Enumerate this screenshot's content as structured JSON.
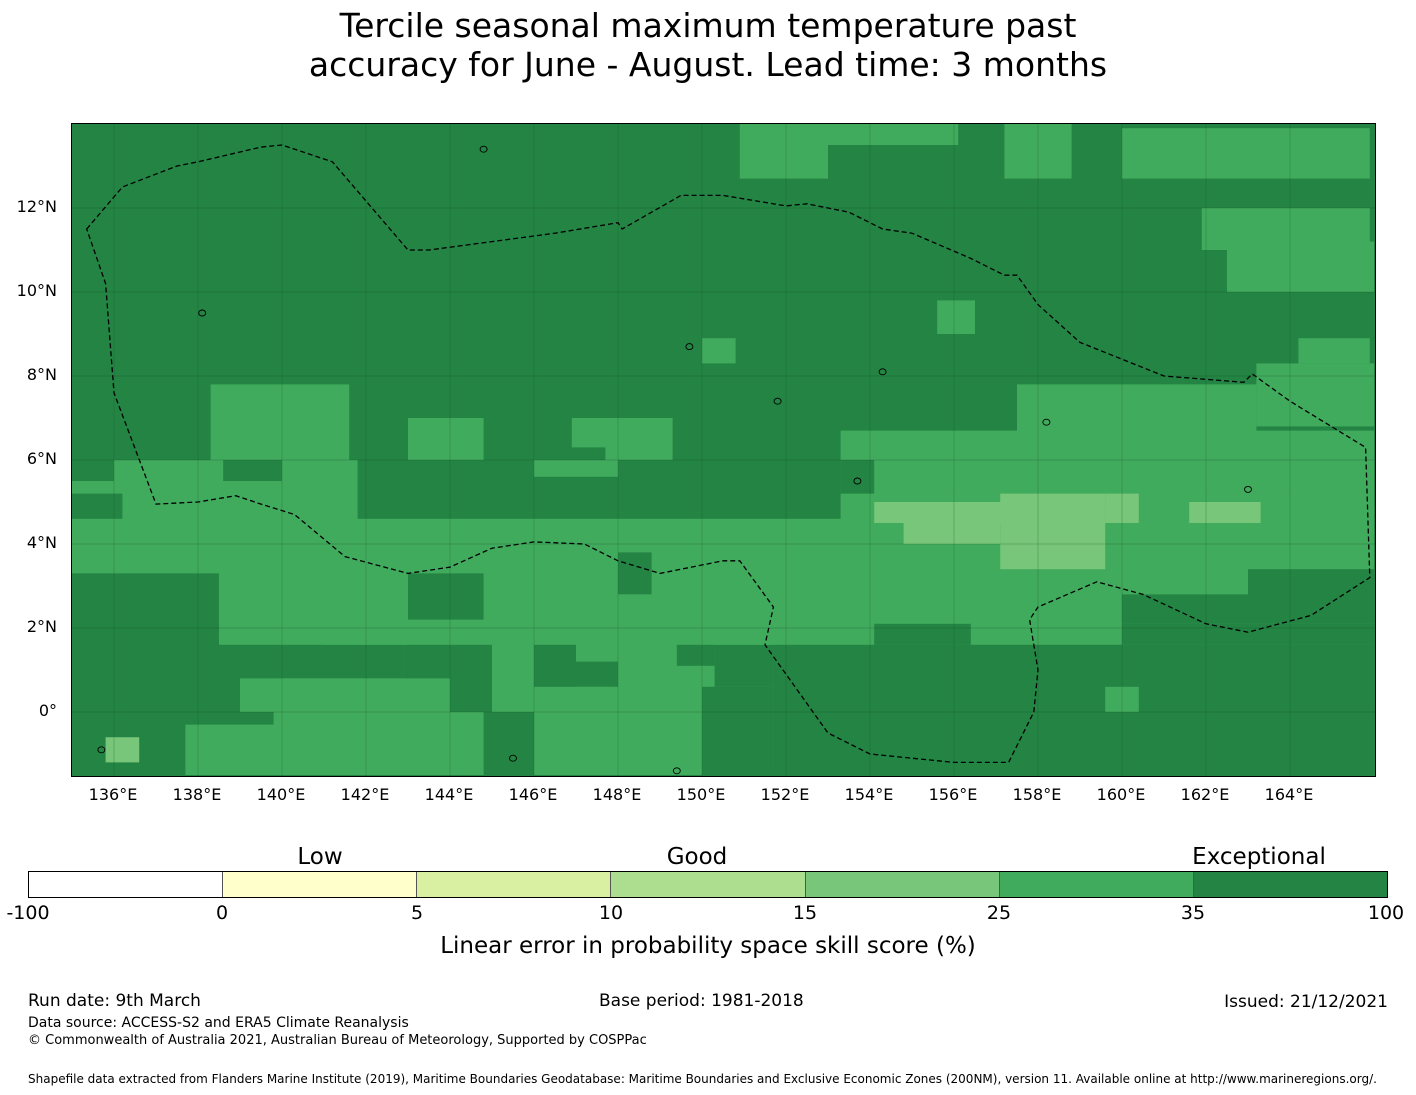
{
  "title": {
    "line1": "Tercile seasonal maximum temperature past",
    "line2": "accuracy for June - August. Lead time: 3 months"
  },
  "map": {
    "lat_labels": [
      "12°N",
      "10°N",
      "8°N",
      "6°N",
      "4°N",
      "2°N",
      "0°"
    ],
    "lon_labels": [
      "136°E",
      "138°E",
      "140°E",
      "142°E",
      "144°E",
      "146°E",
      "148°E",
      "150°E",
      "152°E",
      "154°E",
      "156°E",
      "158°E",
      "160°E",
      "162°E",
      "164°E"
    ],
    "extent": {
      "lon": [
        135,
        166
      ],
      "lat": [
        -1.5,
        14
      ]
    },
    "colors": {
      "exceptional": "#238443",
      "very_good": "#41ab5d",
      "good_high": "#78c679",
      "good": "#addd8e",
      "low_high": "#d9f0a3",
      "low": "#ffffcc",
      "none": "#ffffff",
      "boundary": "#000000"
    }
  },
  "colorbar": {
    "categories": [
      "Low",
      "Good",
      "Exceptional"
    ],
    "ticks": [
      "-100",
      "0",
      "5",
      "10",
      "15",
      "25",
      "35",
      "100"
    ],
    "colors": [
      "#ffffff",
      "#ffffcc",
      "#d9f0a3",
      "#addd8e",
      "#78c679",
      "#41ab5d",
      "#238443"
    ],
    "label": "Linear error in probability space skill score (%)"
  },
  "footer": {
    "run_date": "Run date: 9th March",
    "base_period": "Base period: 1981-2018",
    "issued": "Issued: 21/12/2021",
    "data_source": "Data source: ACCESS-S2 and ERA5 Climate Reanalysis",
    "copyright": "© Commonwealth of Australia 2021, Australian Bureau of Meteorology, Supported by COSPPac",
    "shapefile": "Shapefile data extracted from Flanders Marine Institute (2019), Maritime Boundaries Geodatabase: Maritime Boundaries and Exclusive Economic Zones (200NM), version 11. Available online at http://www.marineregions.org/."
  }
}
